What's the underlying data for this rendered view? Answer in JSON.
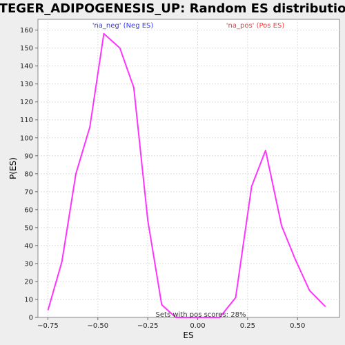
{
  "chart_data": {
    "type": "line",
    "title": "STEGER_ADIPOGENESIS_UP: Random ES distribution",
    "xlabel": "ES",
    "ylabel": "P(ES)",
    "xlim": [
      -0.8,
      0.71
    ],
    "ylim": [
      0,
      166
    ],
    "xticks": [
      -0.75,
      -0.5,
      -0.25,
      0.0,
      0.25,
      0.5
    ],
    "xtick_labels": [
      "−0.75",
      "−0.50",
      "−0.25",
      "0.00",
      "0.25",
      "0.50"
    ],
    "yticks": [
      0,
      10,
      20,
      30,
      40,
      50,
      60,
      70,
      80,
      90,
      100,
      110,
      120,
      130,
      140,
      150,
      160
    ],
    "grid": true,
    "series": [
      {
        "color": "#ff33ff",
        "x": [
          -0.75,
          -0.68,
          -0.61,
          -0.54,
          -0.47,
          -0.39,
          -0.32,
          -0.25,
          -0.18,
          -0.11,
          -0.04,
          0.04,
          0.11,
          0.19,
          0.27,
          0.34,
          0.42,
          0.49,
          0.56,
          0.64
        ],
        "y": [
          4,
          31,
          80,
          106,
          158,
          150,
          128,
          54,
          7,
          0,
          0,
          0,
          0,
          11,
          73,
          93,
          51,
          32,
          15,
          6
        ]
      }
    ],
    "legend": {
      "neg": {
        "label": "'na_neg' (Neg ES)",
        "color": "#3333ff"
      },
      "pos": {
        "label": "'na_pos' (Pos ES)",
        "color": "#ff3333"
      }
    },
    "annotation": "Sets with pos scores: 28%"
  }
}
